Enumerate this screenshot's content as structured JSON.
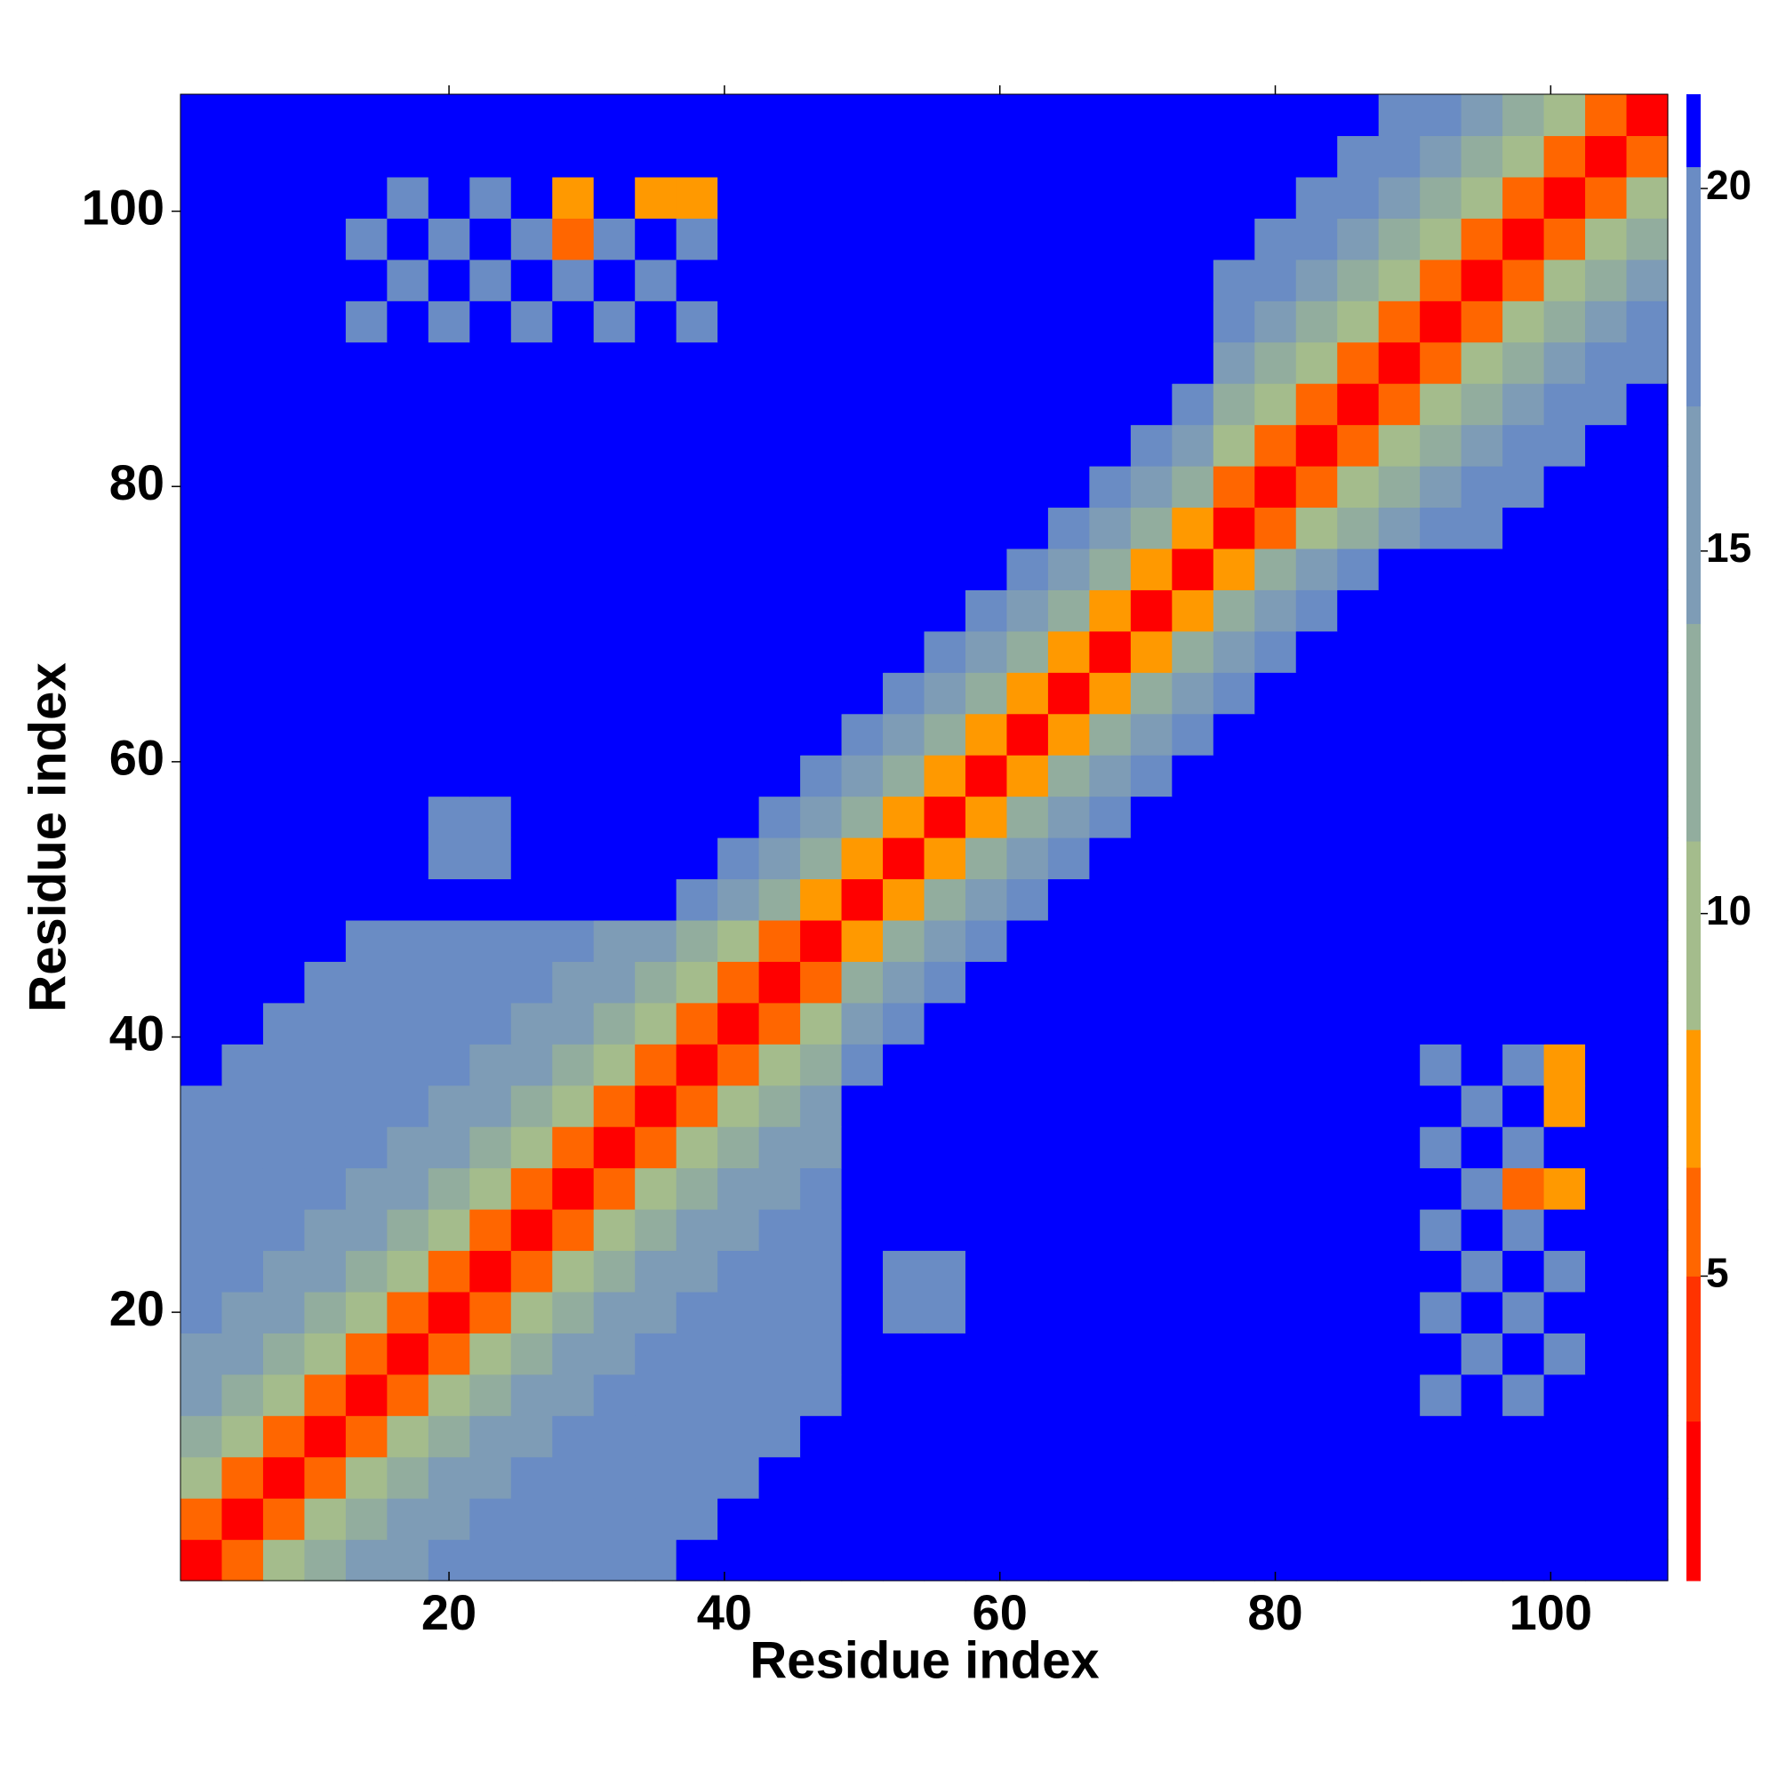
{
  "chart_data": {
    "type": "heatmap",
    "x_label": "Residue index",
    "y_label": "Residue index",
    "xlim": [
      0.5,
      108.5
    ],
    "ylim": [
      0.5,
      108.5
    ],
    "xticks": [
      20,
      40,
      60,
      80,
      100
    ],
    "yticks": [
      20,
      40,
      60,
      80,
      100
    ],
    "zlim": [
      0.8,
      21.3
    ],
    "zticks": [
      5,
      10,
      15,
      20
    ],
    "colorscale": [
      {
        "value": 0.8,
        "color": "#ff0000"
      },
      {
        "value": 3,
        "color": "#ff3300"
      },
      {
        "value": 5,
        "color": "#ff6600"
      },
      {
        "value": 6.5,
        "color": "#ff9900"
      },
      {
        "value": 8.4,
        "color": "#a4bc8c"
      },
      {
        "value": 11,
        "color": "#92ad9e"
      },
      {
        "value": 14,
        "color": "#7e9cb6"
      },
      {
        "value": 17,
        "color": "#6a8cc4"
      },
      {
        "value": 20.3,
        "color": "#0000ff"
      }
    ],
    "x": [
      2,
      5,
      8,
      11,
      14,
      17,
      20,
      23,
      26,
      29,
      32,
      35,
      38,
      41,
      44,
      47,
      50,
      53,
      56,
      59,
      62,
      65,
      68,
      71,
      74,
      77,
      80,
      83,
      86,
      89,
      92,
      95,
      98,
      101,
      104,
      107
    ],
    "y": [
      2,
      5,
      8,
      11,
      14,
      17,
      20,
      23,
      26,
      29,
      32,
      35,
      38,
      41,
      44,
      47,
      50,
      53,
      56,
      59,
      62,
      65,
      68,
      71,
      74,
      77,
      80,
      83,
      86,
      89,
      92,
      95,
      98,
      101,
      104,
      107
    ],
    "z": [
      [
        2,
        6,
        9,
        12,
        14,
        16,
        17,
        18,
        19,
        19,
        19,
        19,
        21,
        21,
        21,
        21,
        21,
        21,
        21,
        21,
        21,
        21,
        21,
        21,
        21,
        21,
        21,
        21,
        21,
        21,
        21,
        21,
        21,
        21,
        21,
        21
      ],
      [
        6,
        2,
        6,
        9,
        12,
        14,
        16,
        17,
        18,
        19,
        19,
        19,
        19,
        21,
        21,
        21,
        21,
        21,
        21,
        21,
        21,
        21,
        21,
        21,
        21,
        21,
        21,
        21,
        21,
        21,
        21,
        21,
        21,
        21,
        21,
        21
      ],
      [
        9,
        6,
        2,
        6,
        9,
        12,
        14,
        16,
        17,
        18,
        19,
        19,
        19,
        19,
        21,
        21,
        21,
        21,
        21,
        21,
        21,
        21,
        21,
        21,
        21,
        21,
        21,
        21,
        21,
        21,
        21,
        21,
        21,
        21,
        21,
        21
      ],
      [
        12,
        9,
        6,
        2,
        6,
        9,
        12,
        14,
        16,
        17,
        18,
        19,
        19,
        19,
        19,
        21,
        21,
        21,
        21,
        21,
        21,
        21,
        21,
        21,
        21,
        21,
        21,
        21,
        21,
        21,
        21,
        21,
        21,
        21,
        21,
        21
      ],
      [
        14,
        12,
        9,
        6,
        2,
        6,
        9,
        12,
        14,
        16,
        17,
        18,
        19,
        19,
        19,
        19,
        21,
        21,
        21,
        21,
        21,
        21,
        21,
        21,
        21,
        21,
        21,
        21,
        21,
        21,
        19,
        21,
        19,
        21,
        21,
        21
      ],
      [
        16,
        14,
        12,
        9,
        6,
        2,
        6,
        9,
        12,
        14,
        16,
        17,
        18,
        19,
        19,
        19,
        21,
        21,
        21,
        21,
        21,
        21,
        21,
        21,
        21,
        21,
        21,
        21,
        21,
        21,
        21,
        19,
        21,
        19,
        21,
        21
      ],
      [
        17,
        16,
        14,
        12,
        9,
        6,
        2,
        6,
        9,
        12,
        14,
        16,
        17,
        18,
        19,
        19,
        21,
        18,
        18,
        21,
        21,
        21,
        21,
        21,
        21,
        21,
        21,
        21,
        21,
        21,
        19,
        21,
        19,
        21,
        21,
        21
      ],
      [
        18,
        17,
        16,
        14,
        12,
        9,
        6,
        2,
        6,
        9,
        12,
        14,
        16,
        17,
        18,
        19,
        21,
        18,
        18,
        21,
        21,
        21,
        21,
        21,
        21,
        21,
        21,
        21,
        21,
        21,
        21,
        19,
        21,
        19,
        21,
        21
      ],
      [
        19,
        18,
        17,
        16,
        14,
        12,
        9,
        6,
        2,
        6,
        9,
        12,
        14,
        16,
        17,
        18,
        21,
        21,
        21,
        21,
        21,
        21,
        21,
        21,
        21,
        21,
        21,
        21,
        21,
        21,
        19,
        21,
        19,
        21,
        21,
        21
      ],
      [
        19,
        19,
        18,
        17,
        16,
        14,
        12,
        9,
        6,
        2,
        6,
        9,
        12,
        14,
        16,
        17,
        21,
        21,
        21,
        21,
        21,
        21,
        21,
        21,
        21,
        21,
        21,
        21,
        21,
        21,
        21,
        19,
        6,
        7,
        21,
        21
      ],
      [
        19,
        19,
        19,
        18,
        17,
        16,
        14,
        12,
        9,
        6,
        2,
        6,
        9,
        12,
        14,
        16,
        21,
        21,
        21,
        21,
        21,
        21,
        21,
        21,
        21,
        21,
        21,
        21,
        21,
        21,
        19,
        21,
        19,
        21,
        21,
        21
      ],
      [
        19,
        19,
        19,
        19,
        18,
        17,
        16,
        14,
        12,
        9,
        6,
        2,
        6,
        9,
        12,
        14,
        21,
        21,
        21,
        21,
        21,
        21,
        21,
        21,
        21,
        21,
        21,
        21,
        21,
        21,
        21,
        19,
        21,
        7,
        21,
        21
      ],
      [
        21,
        19,
        19,
        19,
        19,
        18,
        17,
        16,
        14,
        12,
        9,
        6,
        2,
        6,
        9,
        12,
        19,
        21,
        21,
        21,
        21,
        21,
        21,
        21,
        21,
        21,
        21,
        21,
        21,
        21,
        19,
        21,
        19,
        7,
        21,
        21
      ],
      [
        21,
        21,
        19,
        19,
        19,
        19,
        18,
        17,
        16,
        14,
        12,
        9,
        6,
        2,
        6,
        9,
        16,
        19,
        21,
        21,
        21,
        21,
        21,
        21,
        21,
        21,
        21,
        21,
        21,
        21,
        21,
        21,
        21,
        21,
        21,
        21
      ],
      [
        21,
        21,
        21,
        19,
        19,
        19,
        19,
        18,
        17,
        16,
        14,
        12,
        9,
        6,
        2,
        6,
        12,
        16,
        19,
        21,
        21,
        21,
        21,
        21,
        21,
        21,
        21,
        21,
        21,
        21,
        21,
        21,
        21,
        21,
        21,
        21
      ],
      [
        21,
        21,
        21,
        21,
        19,
        19,
        19,
        19,
        18,
        17,
        16,
        14,
        12,
        9,
        6,
        2,
        7,
        12,
        16,
        19,
        21,
        21,
        21,
        21,
        21,
        21,
        21,
        21,
        21,
        21,
        21,
        21,
        21,
        21,
        21,
        21
      ],
      [
        21,
        21,
        21,
        21,
        21,
        21,
        21,
        21,
        21,
        21,
        21,
        21,
        19,
        16,
        12,
        7,
        2,
        7,
        12,
        16,
        19,
        21,
        21,
        21,
        21,
        21,
        21,
        21,
        21,
        21,
        21,
        21,
        21,
        21,
        21,
        21
      ],
      [
        21,
        21,
        21,
        21,
        21,
        21,
        18,
        18,
        21,
        21,
        21,
        21,
        21,
        19,
        16,
        12,
        7,
        2,
        7,
        12,
        16,
        19,
        21,
        21,
        21,
        21,
        21,
        21,
        21,
        21,
        21,
        21,
        21,
        21,
        21,
        21
      ],
      [
        21,
        21,
        21,
        21,
        21,
        21,
        18,
        18,
        21,
        21,
        21,
        21,
        21,
        21,
        19,
        16,
        12,
        7,
        2,
        7,
        12,
        16,
        19,
        21,
        21,
        21,
        21,
        21,
        21,
        21,
        21,
        21,
        21,
        21,
        21,
        21
      ],
      [
        21,
        21,
        21,
        21,
        21,
        21,
        21,
        21,
        21,
        21,
        21,
        21,
        21,
        21,
        21,
        19,
        16,
        12,
        7,
        2,
        7,
        12,
        16,
        19,
        21,
        21,
        21,
        21,
        21,
        21,
        21,
        21,
        21,
        21,
        21,
        21
      ],
      [
        21,
        21,
        21,
        21,
        21,
        21,
        21,
        21,
        21,
        21,
        21,
        21,
        21,
        21,
        21,
        21,
        19,
        16,
        12,
        7,
        2,
        7,
        12,
        16,
        19,
        21,
        21,
        21,
        21,
        21,
        21,
        21,
        21,
        21,
        21,
        21
      ],
      [
        21,
        21,
        21,
        21,
        21,
        21,
        21,
        21,
        21,
        21,
        21,
        21,
        21,
        21,
        21,
        21,
        21,
        19,
        16,
        12,
        7,
        2,
        7,
        12,
        16,
        19,
        21,
        21,
        21,
        21,
        21,
        21,
        21,
        21,
        21,
        21
      ],
      [
        21,
        21,
        21,
        21,
        21,
        21,
        21,
        21,
        21,
        21,
        21,
        21,
        21,
        21,
        21,
        21,
        21,
        21,
        19,
        16,
        12,
        7,
        2,
        7,
        12,
        16,
        19,
        21,
        21,
        21,
        21,
        21,
        21,
        21,
        21,
        21
      ],
      [
        21,
        21,
        21,
        21,
        21,
        21,
        21,
        21,
        21,
        21,
        21,
        21,
        21,
        21,
        21,
        21,
        21,
        21,
        21,
        19,
        16,
        12,
        7,
        2,
        7,
        12,
        16,
        19,
        21,
        21,
        21,
        21,
        21,
        21,
        21,
        21
      ],
      [
        21,
        21,
        21,
        21,
        21,
        21,
        21,
        21,
        21,
        21,
        21,
        21,
        21,
        21,
        21,
        21,
        21,
        21,
        21,
        21,
        19,
        16,
        12,
        7,
        2,
        7,
        12,
        16,
        19,
        21,
        21,
        21,
        21,
        21,
        21,
        21
      ],
      [
        21,
        21,
        21,
        21,
        21,
        21,
        21,
        21,
        21,
        21,
        21,
        21,
        21,
        21,
        21,
        21,
        21,
        21,
        21,
        21,
        21,
        19,
        16,
        12,
        7,
        2,
        6,
        10,
        13,
        16,
        18,
        19,
        21,
        21,
        21,
        21
      ],
      [
        21,
        21,
        21,
        21,
        21,
        21,
        21,
        21,
        21,
        21,
        21,
        21,
        21,
        21,
        21,
        21,
        21,
        21,
        21,
        21,
        21,
        21,
        19,
        16,
        12,
        6,
        2,
        6,
        10,
        13,
        16,
        18,
        19,
        21,
        21,
        21
      ],
      [
        21,
        21,
        21,
        21,
        21,
        21,
        21,
        21,
        21,
        21,
        21,
        21,
        21,
        21,
        21,
        21,
        21,
        21,
        21,
        21,
        21,
        21,
        21,
        19,
        16,
        10,
        6,
        2,
        6,
        10,
        13,
        16,
        18,
        19,
        21,
        21
      ],
      [
        21,
        21,
        21,
        21,
        21,
        21,
        21,
        21,
        21,
        21,
        21,
        21,
        21,
        21,
        21,
        21,
        21,
        21,
        21,
        21,
        21,
        21,
        21,
        21,
        19,
        13,
        10,
        6,
        2,
        6,
        10,
        13,
        16,
        18,
        19,
        21
      ],
      [
        21,
        21,
        21,
        21,
        21,
        21,
        21,
        21,
        21,
        21,
        21,
        21,
        21,
        21,
        21,
        21,
        21,
        21,
        21,
        21,
        21,
        21,
        21,
        21,
        21,
        16,
        13,
        10,
        6,
        2,
        6,
        10,
        13,
        16,
        18,
        19
      ],
      [
        21,
        21,
        21,
        21,
        19,
        21,
        19,
        21,
        19,
        21,
        19,
        21,
        19,
        21,
        21,
        21,
        21,
        21,
        21,
        21,
        21,
        21,
        21,
        21,
        21,
        18,
        16,
        13,
        10,
        6,
        2,
        6,
        10,
        13,
        16,
        18
      ],
      [
        21,
        21,
        21,
        21,
        21,
        19,
        21,
        19,
        21,
        19,
        21,
        19,
        21,
        21,
        21,
        21,
        21,
        21,
        21,
        21,
        21,
        21,
        21,
        21,
        21,
        19,
        18,
        16,
        13,
        10,
        6,
        2,
        6,
        10,
        13,
        16
      ],
      [
        21,
        21,
        21,
        21,
        19,
        21,
        19,
        21,
        19,
        6,
        19,
        21,
        19,
        21,
        21,
        21,
        21,
        21,
        21,
        21,
        21,
        21,
        21,
        21,
        21,
        21,
        19,
        18,
        16,
        13,
        10,
        6,
        2,
        6,
        10,
        13
      ],
      [
        21,
        21,
        21,
        21,
        21,
        19,
        21,
        19,
        21,
        7,
        21,
        7,
        7,
        21,
        21,
        21,
        21,
        21,
        21,
        21,
        21,
        21,
        21,
        21,
        21,
        21,
        21,
        19,
        18,
        16,
        13,
        10,
        6,
        2,
        6,
        10
      ],
      [
        21,
        21,
        21,
        21,
        21,
        21,
        21,
        21,
        21,
        21,
        21,
        21,
        21,
        21,
        21,
        21,
        21,
        21,
        21,
        21,
        21,
        21,
        21,
        21,
        21,
        21,
        21,
        21,
        19,
        18,
        16,
        13,
        10,
        6,
        2,
        6
      ],
      [
        21,
        21,
        21,
        21,
        21,
        21,
        21,
        21,
        21,
        21,
        21,
        21,
        21,
        21,
        21,
        21,
        21,
        21,
        21,
        21,
        21,
        21,
        21,
        21,
        21,
        21,
        21,
        21,
        21,
        19,
        18,
        16,
        13,
        10,
        6,
        2
      ]
    ]
  }
}
